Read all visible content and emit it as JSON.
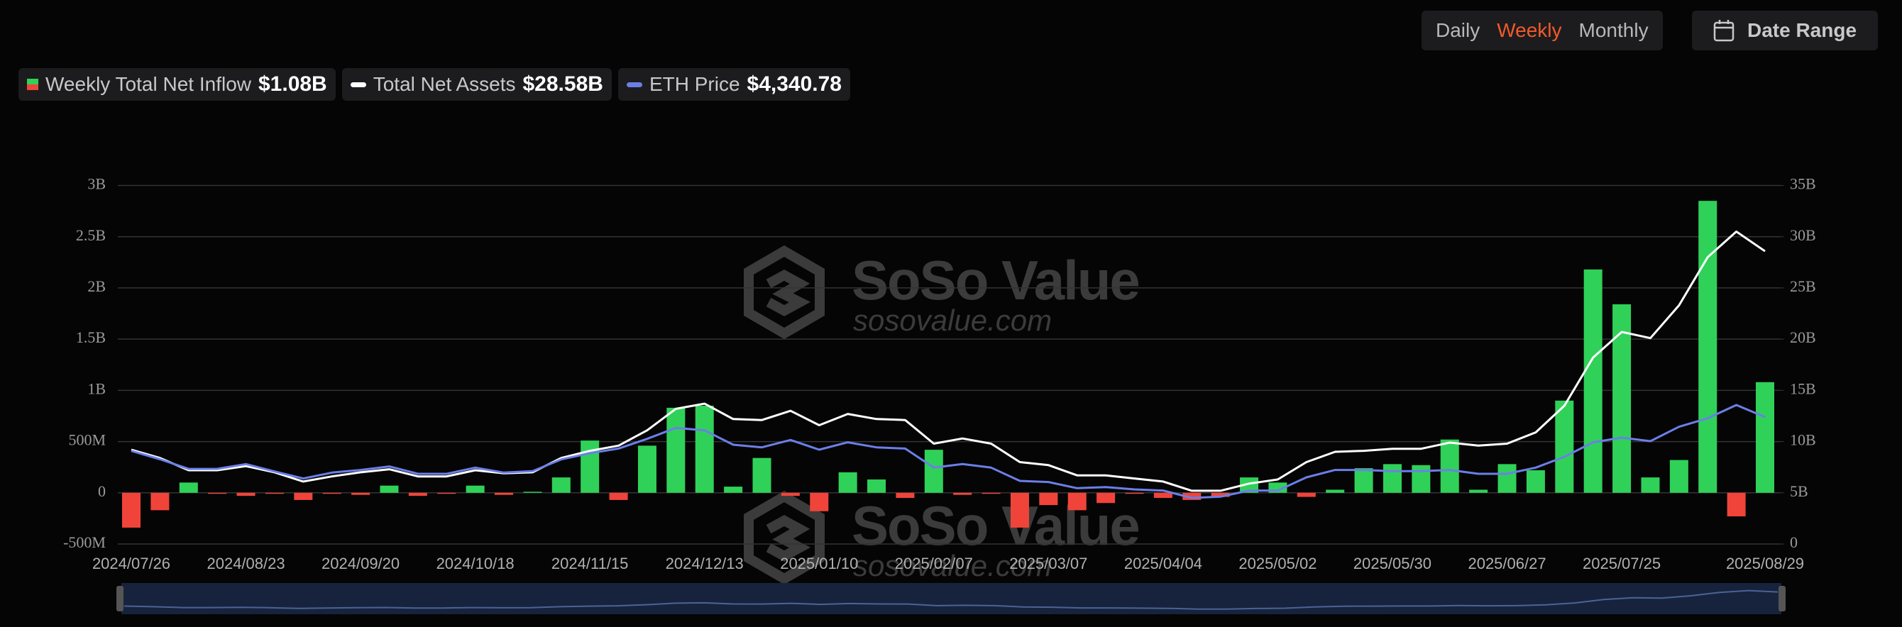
{
  "chart_data": {
    "type": "combo",
    "controls": {
      "periods": [
        "Daily",
        "Weekly",
        "Monthly"
      ],
      "active_period": 1,
      "date_range": "Date Range"
    },
    "watermark": {
      "brand": "SoSo Value",
      "url": "sosovalue.com"
    },
    "categories": [
      "2024/07/26",
      null,
      null,
      null,
      "2024/08/23",
      null,
      null,
      null,
      "2024/09/20",
      null,
      null,
      null,
      "2024/10/18",
      null,
      null,
      null,
      "2024/11/15",
      null,
      null,
      null,
      "2024/12/13",
      null,
      null,
      null,
      "2025/01/10",
      null,
      null,
      null,
      "2025/02/07",
      null,
      null,
      null,
      "2025/03/07",
      null,
      null,
      null,
      "2025/04/04",
      null,
      null,
      null,
      "2025/05/02",
      null,
      null,
      null,
      "2025/05/30",
      null,
      null,
      null,
      "2025/06/27",
      null,
      null,
      null,
      "2025/07/25",
      null,
      null,
      null,
      null,
      "2025/08/29"
    ],
    "series": [
      {
        "name": "Weekly Total Net Inflow",
        "type": "bar",
        "positive_color": "#30d158",
        "negative_color": "#f0443a",
        "latest_label": "$1.08B",
        "values": [
          -0.34,
          -0.17,
          0.1,
          -0.01,
          -0.03,
          -0.01,
          -0.07,
          -0.01,
          -0.02,
          0.07,
          -0.03,
          -0.01,
          0.07,
          -0.02,
          0.01,
          0.15,
          0.51,
          -0.07,
          0.46,
          0.83,
          0.85,
          0.06,
          0.34,
          -0.03,
          -0.18,
          0.2,
          0.13,
          -0.05,
          0.42,
          -0.02,
          -0.01,
          -0.34,
          -0.12,
          -0.17,
          -0.1,
          -0.01,
          -0.05,
          -0.07,
          -0.04,
          0.15,
          0.1,
          -0.04,
          0.03,
          0.24,
          0.28,
          0.27,
          0.52,
          0.03,
          0.28,
          0.22,
          0.9,
          2.18,
          1.84,
          0.15,
          0.32,
          2.85,
          -0.23,
          1.08
        ]
      },
      {
        "name": "Total Net Assets",
        "type": "line",
        "axis": "y2",
        "color": "#ffffff",
        "latest_label": "$28.58B",
        "values": [
          9.2,
          8.4,
          7.2,
          7.2,
          7.6,
          7.0,
          6.1,
          6.6,
          7.0,
          7.3,
          6.6,
          6.6,
          7.2,
          6.9,
          7.0,
          8.4,
          9.1,
          9.6,
          11.1,
          13.2,
          13.7,
          12.2,
          12.1,
          13.0,
          11.6,
          12.7,
          12.2,
          12.1,
          9.8,
          10.3,
          9.8,
          8.0,
          7.7,
          6.7,
          6.7,
          6.4,
          6.1,
          5.2,
          5.2,
          5.9,
          6.3,
          8.0,
          9.0,
          9.1,
          9.3,
          9.3,
          9.9,
          9.6,
          9.8,
          10.9,
          13.5,
          18.2,
          20.7,
          20.1,
          23.3,
          28.0,
          30.5,
          28.58
        ]
      },
      {
        "name": "ETH Price",
        "type": "line",
        "axis": "hidden",
        "color": "#6b7fe8",
        "latest_label": "$4,340.78",
        "values": [
          3190,
          2905,
          2577,
          2580,
          2740,
          2490,
          2250,
          2450,
          2540,
          2660,
          2410,
          2410,
          2620,
          2450,
          2500,
          2900,
          3110,
          3270,
          3600,
          3970,
          3890,
          3400,
          3310,
          3560,
          3230,
          3480,
          3310,
          3270,
          2620,
          2740,
          2620,
          2170,
          2130,
          1920,
          1960,
          1880,
          1840,
          1590,
          1630,
          1840,
          1840,
          2290,
          2540,
          2540,
          2500,
          2500,
          2540,
          2410,
          2410,
          2620,
          2990,
          3480,
          3640,
          3520,
          4010,
          4300,
          4750,
          4340.78
        ]
      }
    ],
    "ylim": [
      -0.5,
      3
    ],
    "yticks": [
      {
        "value": -0.5,
        "label": "-500M"
      },
      0,
      {
        "value": 0.5,
        "label": "500M"
      },
      {
        "value": 1,
        "label": "1B"
      },
      {
        "value": 1.5,
        "label": "1.5B"
      },
      {
        "value": 2,
        "label": "2B"
      },
      {
        "value": 2.5,
        "label": "2.5B"
      },
      {
        "value": 3,
        "label": "3B"
      }
    ],
    "y2lim": [
      0,
      35
    ],
    "y2ticks": [
      0,
      {
        "value": 5,
        "label": "5B"
      },
      {
        "value": 10,
        "label": "10B"
      },
      {
        "value": 15,
        "label": "15B"
      },
      {
        "value": 20,
        "label": "20B"
      },
      {
        "value": 25,
        "label": "25B"
      },
      {
        "value": 30,
        "label": "30B"
      },
      {
        "value": 35,
        "label": "35B"
      }
    ],
    "grid": true
  }
}
